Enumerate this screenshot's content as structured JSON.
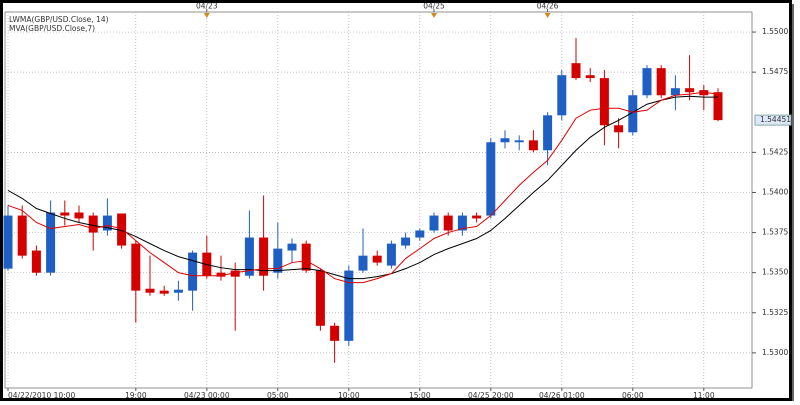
{
  "chart_data": {
    "type": "candlestick",
    "categories": [
      "04/22/2010 10:00",
      null,
      null,
      null,
      null,
      null,
      null,
      null,
      null,
      "19:00",
      null,
      null,
      null,
      null,
      "04/23 00:00",
      null,
      null,
      null,
      null,
      "05:00",
      null,
      null,
      null,
      null,
      "10:00",
      null,
      null,
      null,
      null,
      "15:00",
      null,
      null,
      null,
      null,
      "04/25 20:00",
      null,
      null,
      null,
      null,
      "04/26 01:00",
      null,
      null,
      null,
      null,
      "06:00",
      null,
      null,
      null,
      null,
      "11:00",
      null
    ],
    "top_labels": [
      null,
      null,
      null,
      null,
      null,
      null,
      null,
      null,
      null,
      null,
      null,
      null,
      null,
      null,
      "04/23",
      null,
      null,
      null,
      null,
      null,
      null,
      null,
      null,
      null,
      null,
      null,
      null,
      null,
      null,
      null,
      "04/25",
      null,
      null,
      null,
      null,
      null,
      null,
      null,
      "04/26",
      null,
      null,
      null,
      null,
      null,
      null,
      null,
      null,
      null,
      null,
      null,
      null
    ],
    "open": [
      1.53525,
      1.53856,
      1.53638,
      1.535,
      1.53875,
      1.53875,
      1.53856,
      1.53763,
      1.53869,
      1.53681,
      1.534,
      1.53388,
      1.53375,
      1.53388,
      1.53625,
      1.535,
      1.53513,
      1.53481,
      1.53719,
      1.535,
      1.53638,
      1.53681,
      1.53513,
      1.53169,
      1.53075,
      1.53513,
      1.53606,
      1.53544,
      1.53669,
      1.53719,
      1.53763,
      1.53856,
      1.53763,
      1.53856,
      1.53856,
      1.54313,
      1.54313,
      1.54325,
      1.54263,
      1.54481,
      1.54806,
      1.54731,
      1.54713,
      1.54419,
      1.54375,
      1.54606,
      1.54775,
      1.54606,
      1.5465,
      1.54638,
      1.54625
    ],
    "high": [
      1.53919,
      1.53919,
      1.53669,
      1.5395,
      1.5395,
      1.53919,
      1.53875,
      1.53963,
      1.53869,
      1.537,
      1.53606,
      1.53419,
      1.5345,
      1.53638,
      1.53731,
      1.53606,
      1.53563,
      1.53888,
      1.53981,
      1.53813,
      1.53713,
      1.537,
      1.53525,
      1.53188,
      1.53544,
      1.53775,
      1.53638,
      1.537,
      1.5375,
      1.53775,
      1.53875,
      1.53875,
      1.53875,
      1.53875,
      1.54338,
      1.54388,
      1.54356,
      1.54388,
      1.545,
      1.54763,
      1.54963,
      1.54775,
      1.54763,
      1.54463,
      1.54638,
      1.54794,
      1.54794,
      1.54731,
      1.54856,
      1.54669,
      1.5465
    ],
    "low": [
      1.53513,
      1.53588,
      1.53481,
      1.53481,
      1.53794,
      1.53813,
      1.53638,
      1.53731,
      1.5365,
      1.53188,
      1.53356,
      1.53356,
      1.53325,
      1.53263,
      1.53463,
      1.5345,
      1.53138,
      1.53463,
      1.53388,
      1.53463,
      1.53563,
      1.535,
      1.53138,
      1.52938,
      1.53044,
      1.535,
      1.53544,
      1.53525,
      1.5365,
      1.537,
      1.5375,
      1.53731,
      1.53731,
      1.53813,
      1.53838,
      1.54275,
      1.54263,
      1.5425,
      1.54169,
      1.5445,
      1.547,
      1.54688,
      1.54294,
      1.54275,
      1.54356,
      1.54588,
      1.54588,
      1.54513,
      1.54575,
      1.54513,
      1.54445
    ],
    "close": [
      1.53856,
      1.53606,
      1.535,
      1.53875,
      1.53856,
      1.53838,
      1.5375,
      1.53856,
      1.53669,
      1.53388,
      1.53375,
      1.53369,
      1.53394,
      1.53625,
      1.53481,
      1.53475,
      1.53475,
      1.53719,
      1.53481,
      1.5365,
      1.53681,
      1.53513,
      1.53169,
      1.53075,
      1.53513,
      1.53606,
      1.53563,
      1.53681,
      1.53719,
      1.53763,
      1.53856,
      1.53763,
      1.53856,
      1.53838,
      1.54313,
      1.54338,
      1.54325,
      1.54263,
      1.54481,
      1.54731,
      1.54713,
      1.54713,
      1.54419,
      1.54375,
      1.54606,
      1.54775,
      1.54606,
      1.5465,
      1.54625,
      1.54606,
      1.54451
    ],
    "up_color": "#1f5fc4",
    "down_color": "#d40000",
    "series": [
      {
        "name": "LWMA(GBP/USD.Close, 14)",
        "color": "#000000",
        "values": [
          1.54013,
          1.53963,
          1.539,
          1.53869,
          1.53838,
          1.53813,
          1.53794,
          1.53781,
          1.53763,
          1.53725,
          1.53681,
          1.53638,
          1.536,
          1.53575,
          1.5355,
          1.53531,
          1.53519,
          1.53519,
          1.53513,
          1.53513,
          1.53519,
          1.53525,
          1.53513,
          1.53488,
          1.53463,
          1.53463,
          1.53475,
          1.53494,
          1.53525,
          1.53563,
          1.53613,
          1.5365,
          1.53681,
          1.53713,
          1.53763,
          1.53838,
          1.53919,
          1.54,
          1.54075,
          1.54169,
          1.54263,
          1.54344,
          1.54406,
          1.5445,
          1.545,
          1.5455,
          1.54575,
          1.54594,
          1.546,
          1.54594,
          1.54594
        ]
      },
      {
        "name": "MVA(GBP/USD.Close,7)",
        "color": "#e00000",
        "values": [
          1.53919,
          1.53888,
          1.53813,
          1.53775,
          1.53788,
          1.538,
          1.53775,
          1.53794,
          1.53775,
          1.537,
          1.53625,
          1.53563,
          1.535,
          1.53481,
          1.53481,
          1.53481,
          1.535,
          1.53513,
          1.53525,
          1.53525,
          1.53563,
          1.53575,
          1.53525,
          1.53463,
          1.53438,
          1.53438,
          1.53463,
          1.53494,
          1.53588,
          1.5365,
          1.53713,
          1.5375,
          1.53775,
          1.53788,
          1.53856,
          1.5395,
          1.54044,
          1.54125,
          1.542,
          1.54325,
          1.54463,
          1.54513,
          1.54525,
          1.54525,
          1.545,
          1.54513,
          1.54575,
          1.54606,
          1.54613,
          1.54625,
          1.54613
        ]
      }
    ],
    "last_price": 1.54451,
    "ylim": [
      1.52781,
      1.55125
    ],
    "yticks": [
      {
        "value": 1.53,
        "label": "1.5300"
      },
      1.5325,
      {
        "value": 1.535,
        "label": "1.5350"
      },
      1.5375,
      {
        "value": 1.54,
        "label": "1.5400"
      },
      1.5425,
      1.5475,
      {
        "value": 1.55,
        "label": "1.5500"
      }
    ],
    "grid": true
  }
}
